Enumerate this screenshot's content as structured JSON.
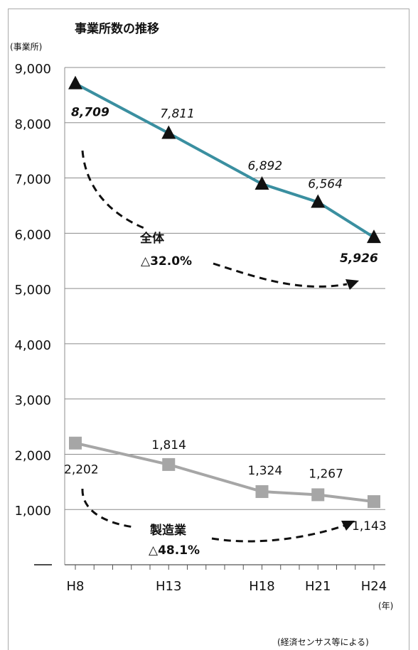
{
  "chart_data": {
    "type": "line",
    "title": "事業所数の推移",
    "ylabel": "(事業所)",
    "xlabel": "(年)",
    "source_note": "(経済センサス等による)",
    "ylim": [
      0,
      9000
    ],
    "yticks": [
      "9,000",
      "8,000",
      "7,000",
      "6,000",
      "5,000",
      "4,000",
      "3,000",
      "2,000",
      "1,000"
    ],
    "categories": [
      "H8",
      "H13",
      "H18",
      "H21",
      "H24"
    ],
    "x_year_index": [
      8,
      13,
      18,
      21,
      24
    ],
    "series": [
      {
        "values": [
          8709,
          7811,
          6892,
          6564,
          5926
        ],
        "labels": [
          "8,709",
          "7,811",
          "6,892",
          "6,564",
          "5,926"
        ],
        "color": "#3a8fa0",
        "marker": "triangle",
        "marker_color": "#111111"
      },
      {
        "values": [
          2202,
          1814,
          1324,
          1267,
          1143
        ],
        "labels": [
          "2,202",
          "1,814",
          "1,324",
          "1,267",
          "1,143"
        ],
        "color": "#a6a6a6",
        "marker": "square",
        "marker_color": "#a6a6a6"
      }
    ],
    "annotations": [
      {
        "line1": "全体",
        "line2": "△32.0%"
      },
      {
        "line1": "製造業",
        "line2": "△48.1%"
      }
    ],
    "grid": true
  }
}
